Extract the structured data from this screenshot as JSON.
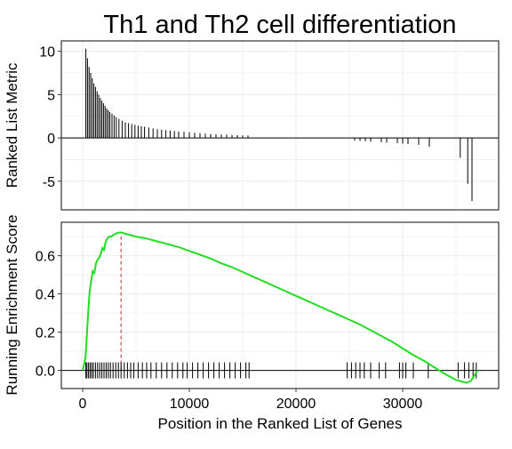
{
  "title": "Th1 and Th2 cell differentiation",
  "colors": {
    "curve": "#22dd22",
    "peak_line": "#c0504d",
    "bars": "#000000",
    "grid": "#ebebeb"
  },
  "chart_data": [
    {
      "type": "bar",
      "panel": "top",
      "ylabel": "Ranked List Metric",
      "xlim": [
        -2000,
        39000
      ],
      "ylim": [
        -8.3,
        11.2
      ],
      "yticks": [
        10,
        5,
        0,
        -5
      ],
      "points": [
        [
          300,
          10.3
        ],
        [
          450,
          9.2
        ],
        [
          600,
          8.2
        ],
        [
          750,
          7.5
        ],
        [
          900,
          6.9
        ],
        [
          1050,
          6.3
        ],
        [
          1200,
          5.9
        ],
        [
          1350,
          5.4
        ],
        [
          1500,
          5.0
        ],
        [
          1650,
          4.6
        ],
        [
          1800,
          4.3
        ],
        [
          1950,
          4.0
        ],
        [
          2100,
          3.7
        ],
        [
          2250,
          3.4
        ],
        [
          2400,
          3.2
        ],
        [
          2550,
          3.0
        ],
        [
          2750,
          2.8
        ],
        [
          2950,
          2.6
        ],
        [
          3150,
          2.4
        ],
        [
          3400,
          2.2
        ],
        [
          3700,
          2.0
        ],
        [
          4000,
          1.8
        ],
        [
          4300,
          1.7
        ],
        [
          4600,
          1.6
        ],
        [
          4900,
          1.5
        ],
        [
          5200,
          1.4
        ],
        [
          5500,
          1.35
        ],
        [
          5800,
          1.3
        ],
        [
          6200,
          1.2
        ],
        [
          6600,
          1.1
        ],
        [
          7000,
          1.0
        ],
        [
          7400,
          0.95
        ],
        [
          7800,
          0.9
        ],
        [
          8200,
          0.85
        ],
        [
          8600,
          0.8
        ],
        [
          9000,
          0.75
        ],
        [
          9500,
          0.7
        ],
        [
          10000,
          0.65
        ],
        [
          10500,
          0.6
        ],
        [
          11000,
          0.55
        ],
        [
          11500,
          0.5
        ],
        [
          12000,
          0.45
        ],
        [
          12500,
          0.42
        ],
        [
          13000,
          0.4
        ],
        [
          13500,
          0.38
        ],
        [
          14000,
          0.35
        ],
        [
          14500,
          0.32
        ],
        [
          15000,
          0.3
        ],
        [
          15500,
          0.28
        ],
        [
          25500,
          -0.3
        ],
        [
          26000,
          -0.35
        ],
        [
          26500,
          -0.4
        ],
        [
          27000,
          -0.45
        ],
        [
          28000,
          -0.5
        ],
        [
          28500,
          -0.55
        ],
        [
          29500,
          -0.6
        ],
        [
          30000,
          -0.65
        ],
        [
          30500,
          -0.7
        ],
        [
          31500,
          -0.8
        ],
        [
          32500,
          -1.0
        ],
        [
          35400,
          -2.3
        ],
        [
          36100,
          -5.3
        ],
        [
          36500,
          -7.3
        ]
      ]
    },
    {
      "type": "line",
      "panel": "bottom",
      "xlabel": "Position in the Ranked List of Genes",
      "ylabel": "Running Enrichment Score",
      "xlim": [
        -2000,
        39000
      ],
      "ylim": [
        -0.095,
        0.775
      ],
      "xticks": [
        0,
        10000,
        20000,
        30000
      ],
      "yticks": [
        0.0,
        0.2,
        0.4,
        0.6
      ],
      "peak_x": 3600,
      "curve": [
        [
          0,
          0.0
        ],
        [
          250,
          0.06
        ],
        [
          350,
          0.14
        ],
        [
          450,
          0.24
        ],
        [
          550,
          0.33
        ],
        [
          650,
          0.41
        ],
        [
          800,
          0.47
        ],
        [
          950,
          0.52
        ],
        [
          1100,
          0.51
        ],
        [
          1250,
          0.56
        ],
        [
          1400,
          0.58
        ],
        [
          1550,
          0.59
        ],
        [
          1700,
          0.61
        ],
        [
          1850,
          0.64
        ],
        [
          2000,
          0.63
        ],
        [
          2150,
          0.67
        ],
        [
          2300,
          0.69
        ],
        [
          2500,
          0.7
        ],
        [
          2700,
          0.7
        ],
        [
          2900,
          0.71
        ],
        [
          3100,
          0.715
        ],
        [
          3300,
          0.72
        ],
        [
          3600,
          0.722
        ],
        [
          4000,
          0.715
        ],
        [
          5000,
          0.7
        ],
        [
          6000,
          0.69
        ],
        [
          7000,
          0.675
        ],
        [
          8000,
          0.66
        ],
        [
          9000,
          0.645
        ],
        [
          10000,
          0.625
        ],
        [
          11000,
          0.605
        ],
        [
          12000,
          0.585
        ],
        [
          13000,
          0.56
        ],
        [
          14000,
          0.54
        ],
        [
          15000,
          0.515
        ],
        [
          16000,
          0.49
        ],
        [
          17000,
          0.465
        ],
        [
          18000,
          0.44
        ],
        [
          19000,
          0.415
        ],
        [
          20000,
          0.39
        ],
        [
          21000,
          0.365
        ],
        [
          22000,
          0.34
        ],
        [
          23000,
          0.315
        ],
        [
          24000,
          0.29
        ],
        [
          25000,
          0.265
        ],
        [
          26000,
          0.24
        ],
        [
          27000,
          0.21
        ],
        [
          28000,
          0.18
        ],
        [
          29000,
          0.15
        ],
        [
          30000,
          0.115
        ],
        [
          31000,
          0.08
        ],
        [
          32000,
          0.05
        ],
        [
          33000,
          0.015
        ],
        [
          34000,
          -0.02
        ],
        [
          35000,
          -0.05
        ],
        [
          36000,
          -0.065
        ],
        [
          36400,
          -0.055
        ],
        [
          36800,
          -0.02
        ],
        [
          37000,
          0.0
        ]
      ],
      "gene_hits": [
        300,
        400,
        550,
        700,
        850,
        1000,
        1200,
        1400,
        1600,
        1800,
        2000,
        2200,
        2400,
        2600,
        2850,
        3100,
        3350,
        3600,
        3900,
        4200,
        4500,
        4800,
        5200,
        5600,
        6000,
        6400,
        6900,
        7400,
        7900,
        8400,
        8900,
        9400,
        9800,
        10300,
        10800,
        11300,
        11800,
        12300,
        12800,
        13300,
        13800,
        14300,
        14800,
        15300,
        15600,
        24800,
        25200,
        25600,
        26000,
        26400,
        27000,
        27800,
        28400,
        29700,
        30000,
        30300,
        31000,
        32400,
        35200,
        35800,
        36200,
        36600,
        36900
      ]
    }
  ]
}
